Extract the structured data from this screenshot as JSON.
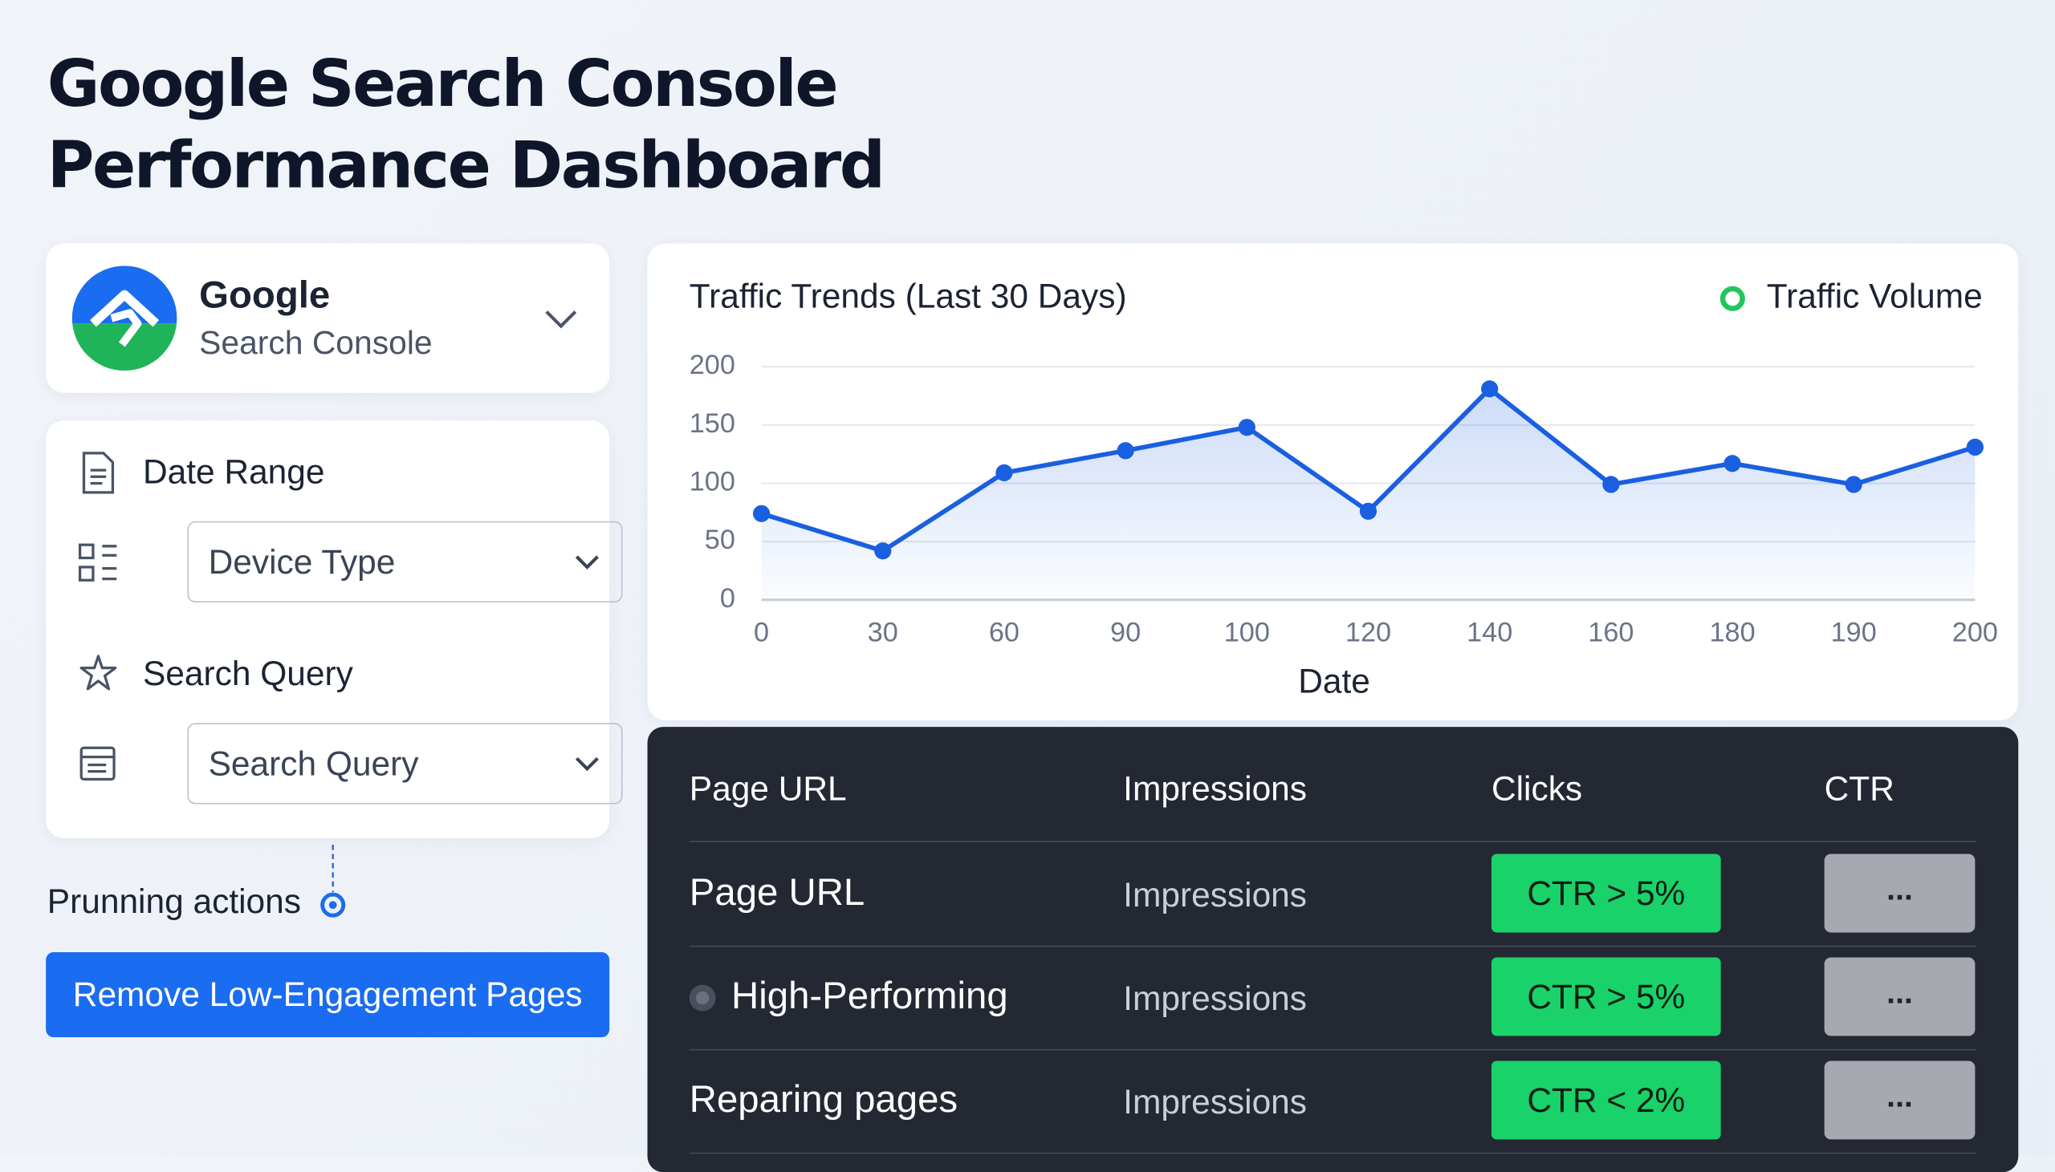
{
  "header": {
    "title_lines": [
      "Google Search Console",
      "Performance Dashboard"
    ]
  },
  "sidebar": {
    "brand": {
      "name": "Google",
      "product": "Search Console"
    },
    "filters": {
      "date_range_label": "Date Range",
      "device_select": "Device Type",
      "search_query_label": "Search Query",
      "search_select": "Search Query"
    },
    "actions_label": "Prunning actions",
    "action_button": "Remove Low-Engagement Pages"
  },
  "chart_data": {
    "type": "line",
    "title": "Traffic Trends (Last 30 Days)",
    "x_label": "Date",
    "categories": [
      "0",
      "30",
      "60",
      "90",
      "100",
      "120",
      "140",
      "160",
      "180",
      "190",
      "200"
    ],
    "series": [
      {
        "name": "Traffic Volume",
        "color": "#1a5fe0",
        "values": [
          74,
          42,
          109,
          128,
          148,
          76,
          181,
          99,
          117,
          99,
          131
        ]
      }
    ],
    "legend_marker_color": "#22c55e",
    "legend": "top-right",
    "ylim": [
      0,
      200
    ],
    "yticks": [
      0,
      50,
      100,
      150,
      200
    ],
    "grid": true
  },
  "table": {
    "columns": [
      "Page URL",
      "Impressions",
      "Clicks",
      "CTR"
    ],
    "rows": [
      [
        "Page URL",
        "Impressions",
        "CTR > 5%",
        "..."
      ],
      [
        "High-Performing",
        "Impressions",
        "CTR > 5%",
        "..."
      ],
      [
        "Reparing pages",
        "Impressions",
        "CTR < 2%",
        "..."
      ]
    ]
  }
}
